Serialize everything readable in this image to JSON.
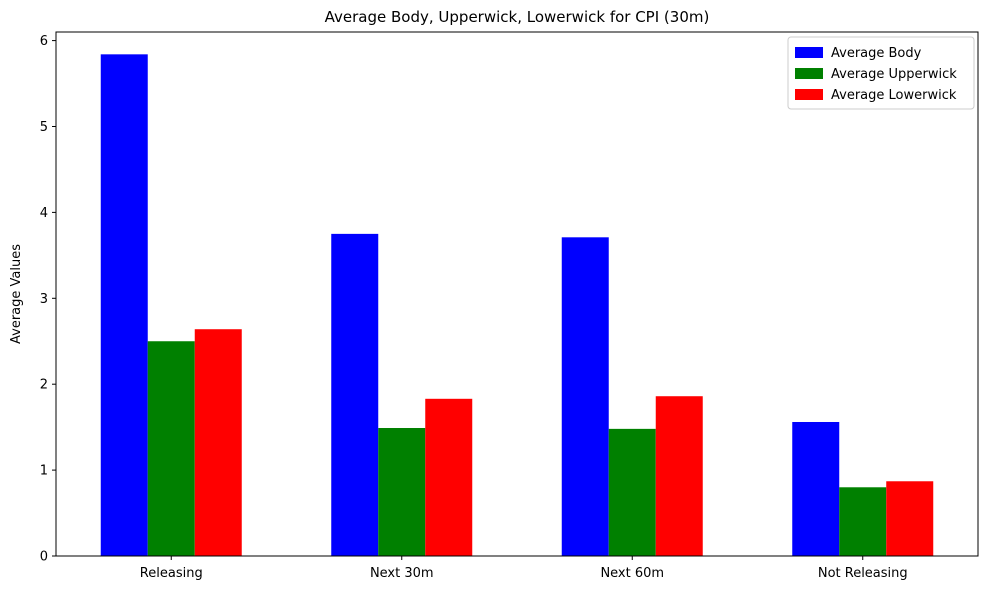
{
  "chart_data": {
    "type": "bar",
    "title": "Average Body, Upperwick, Lowerwick for CPI (30m)",
    "xlabel": "",
    "ylabel": "Average Values",
    "categories": [
      "Releasing",
      "Next 30m",
      "Next 60m",
      "Not Releasing"
    ],
    "series": [
      {
        "name": "Average Body",
        "color": "#0000ff",
        "values": [
          5.84,
          3.75,
          3.71,
          1.56
        ]
      },
      {
        "name": "Average Upperwick",
        "color": "#008000",
        "values": [
          2.5,
          1.49,
          1.48,
          0.8
        ]
      },
      {
        "name": "Average Lowerwick",
        "color": "#ff0000",
        "values": [
          2.64,
          1.83,
          1.86,
          0.87
        ]
      }
    ],
    "ylim": [
      0,
      6.1
    ],
    "yticks": [
      "0",
      "1",
      "2",
      "3",
      "4",
      "5",
      "6"
    ],
    "grid": false,
    "legend": "top-right"
  }
}
